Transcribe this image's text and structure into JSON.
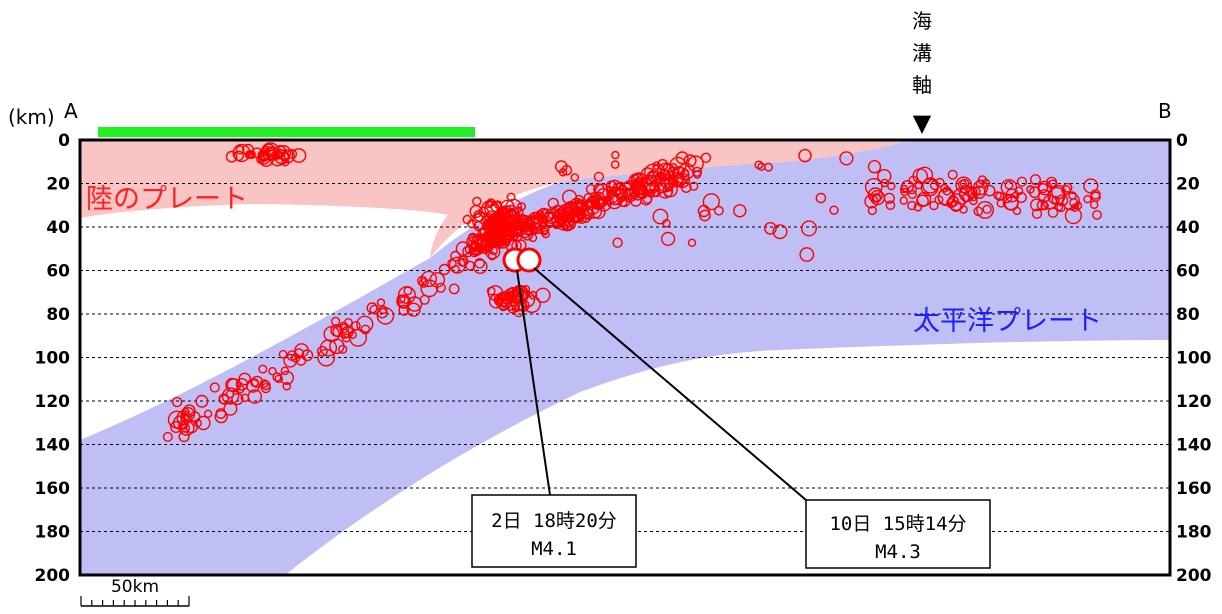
{
  "labels": {
    "unit": "(km)",
    "point_a": "A",
    "point_b": "B",
    "trench": "海溝軸",
    "trench_marker": "▼",
    "land_plate": "陸のプレート",
    "pacific_plate": "太平洋プレート",
    "scale": "50km"
  },
  "depth_ticks": [
    "0",
    "20",
    "40",
    "60",
    "80",
    "100",
    "120",
    "140",
    "160",
    "180",
    "200"
  ],
  "colors": {
    "land_plate_fill": "#f9c4c4",
    "pacific_plate_fill": "#bfbff5",
    "land_plate_text": "#ff2020",
    "pacific_plate_text": "#2020ff",
    "quake": "#ff0000",
    "land_bar": "#22ee22"
  },
  "annotations": [
    {
      "line1": "2日 18時20分",
      "line2": "M4.1",
      "depth_km": 55
    },
    {
      "line1": "10日 15時14分",
      "line2": "M4.3",
      "depth_km": 55
    }
  ],
  "chart_data": {
    "type": "scatter",
    "y_label": "(km)",
    "ylim": [
      200,
      0
    ],
    "y_ticks": [
      0,
      20,
      40,
      60,
      80,
      100,
      120,
      140,
      160,
      180,
      200
    ],
    "grid": "dashed horizontal at each tick",
    "highlighted_events": [
      {
        "label": "2日 18時20分",
        "magnitude": "M4.1",
        "depth_km": 55
      },
      {
        "label": "10日 15時14分",
        "magnitude": "M4.3",
        "depth_km": 55
      }
    ]
  }
}
